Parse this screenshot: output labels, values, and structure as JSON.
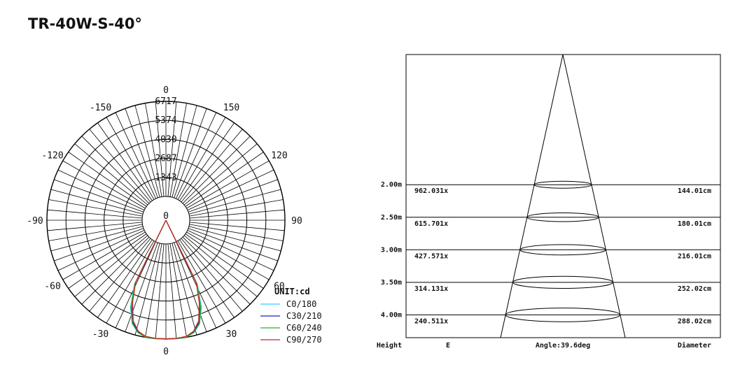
{
  "title": "TR-40W-S-40°",
  "chart_data": [
    {
      "type": "polar",
      "unit_label": "UNIT:cd",
      "radial_ticks": [
        "1343",
        "2687",
        "4030",
        "5374",
        "6717"
      ],
      "radial_values": [
        1343,
        2687,
        4030,
        5374,
        6717
      ],
      "rmax": 6717,
      "angle_labels": [
        {
          "text": "0",
          "angle": 0
        },
        {
          "text": "30",
          "angle": 30
        },
        {
          "text": "-30",
          "angle": -30
        },
        {
          "text": "60",
          "angle": 60
        },
        {
          "text": "-60",
          "angle": -60
        },
        {
          "text": "90",
          "angle": 90
        },
        {
          "text": "-90",
          "angle": -90
        },
        {
          "text": "120",
          "angle": 120
        },
        {
          "text": "-120",
          "angle": -120
        },
        {
          "text": "150",
          "angle": 150
        },
        {
          "text": "-150",
          "angle": -150
        },
        {
          "text": "0",
          "angle": 180
        }
      ],
      "series": [
        {
          "name": "C0/180",
          "color": "#33ccff",
          "points": [
            [
              -26,
              3400
            ],
            [
              -22,
              5000
            ],
            [
              -18,
              6000
            ],
            [
              -14,
              6500
            ],
            [
              -10,
              6700
            ],
            [
              -5,
              6717
            ],
            [
              0,
              6717
            ],
            [
              5,
              6717
            ],
            [
              10,
              6700
            ],
            [
              14,
              6500
            ],
            [
              18,
              6000
            ],
            [
              22,
              5000
            ],
            [
              26,
              3400
            ]
          ]
        },
        {
          "name": "C30/210",
          "color": "#2222cc",
          "points": [
            [
              -26,
              3300
            ],
            [
              -22,
              4800
            ],
            [
              -18,
              5900
            ],
            [
              -14,
              6450
            ],
            [
              -10,
              6680
            ],
            [
              -5,
              6700
            ],
            [
              0,
              6700
            ],
            [
              5,
              6700
            ],
            [
              10,
              6680
            ],
            [
              14,
              6450
            ],
            [
              18,
              5900
            ],
            [
              22,
              4800
            ],
            [
              26,
              3300
            ]
          ]
        },
        {
          "name": "C60/240",
          "color": "#22bb22",
          "points": [
            [
              -26,
              3300
            ],
            [
              -22,
              4900
            ],
            [
              -18,
              6000
            ],
            [
              -14,
              6500
            ],
            [
              -10,
              6700
            ],
            [
              -5,
              6717
            ],
            [
              0,
              6717
            ],
            [
              5,
              6717
            ],
            [
              10,
              6700
            ],
            [
              14,
              6500
            ],
            [
              18,
              6000
            ],
            [
              22,
              4900
            ],
            [
              26,
              3300
            ]
          ]
        },
        {
          "name": "C90/270",
          "color": "#cc2222",
          "points": [
            [
              -26,
              3200
            ],
            [
              -22,
              4600
            ],
            [
              -18,
              5800
            ],
            [
              -14,
              6400
            ],
            [
              -10,
              6650
            ],
            [
              -5,
              6700
            ],
            [
              0,
              6700
            ],
            [
              5,
              6700
            ],
            [
              10,
              6650
            ],
            [
              14,
              6400
            ],
            [
              18,
              5800
            ],
            [
              22,
              4600
            ],
            [
              26,
              3200
            ]
          ]
        }
      ]
    },
    {
      "type": "table",
      "angle_label": "Angle:39.6deg",
      "headers": {
        "height": "Height",
        "e": "E",
        "diameter": "Diameter"
      },
      "rows": [
        {
          "height": "2.00m",
          "h": 2.0,
          "e": "962.031x",
          "diameter": "144.01cm",
          "d": 144.01
        },
        {
          "height": "2.50m",
          "h": 2.5,
          "e": "615.701x",
          "diameter": "180.01cm",
          "d": 180.01
        },
        {
          "height": "3.00m",
          "h": 3.0,
          "e": "427.571x",
          "diameter": "216.01cm",
          "d": 216.01
        },
        {
          "height": "3.50m",
          "h": 3.5,
          "e": "314.131x",
          "diameter": "252.02cm",
          "d": 252.02
        },
        {
          "height": "4.00m",
          "h": 4.0,
          "e": "240.511x",
          "diameter": "288.02cm",
          "d": 288.02
        }
      ]
    }
  ]
}
